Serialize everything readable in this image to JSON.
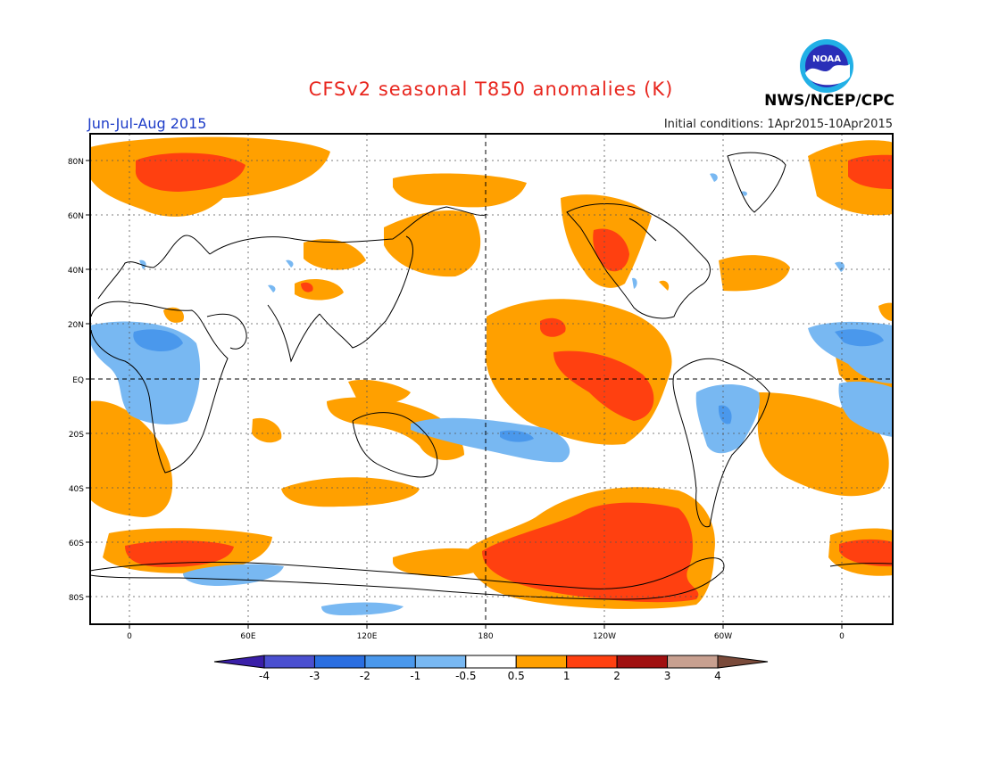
{
  "title": "CFSv2 seasonal T850 anomalies (K)",
  "period": "Jun-Jul-Aug 2015",
  "initial_conditions": "Initial conditions: 1Apr2015-10Apr2015",
  "agency": "NWS/NCEP/CPC",
  "logo_text": "NOAA",
  "map": {
    "lat_labels": [
      "80N",
      "60N",
      "40N",
      "20N",
      "EQ",
      "20S",
      "40S",
      "60S",
      "80S"
    ],
    "lon_labels": [
      "0",
      "60E",
      "120E",
      "180",
      "120W",
      "60W",
      "0"
    ]
  },
  "colorbar": {
    "labels": [
      "-4",
      "-3",
      "-2",
      "-1",
      "-0.5",
      "0.5",
      "1",
      "2",
      "3",
      "4"
    ],
    "colors": [
      "#3a1fa8",
      "#4a4fd0",
      "#2a6ee0",
      "#4a98ec",
      "#78b8f2",
      "#ffffff",
      "#ffa000",
      "#ff4010",
      "#a01010",
      "#c8a090",
      "#7a4a3a"
    ]
  }
}
